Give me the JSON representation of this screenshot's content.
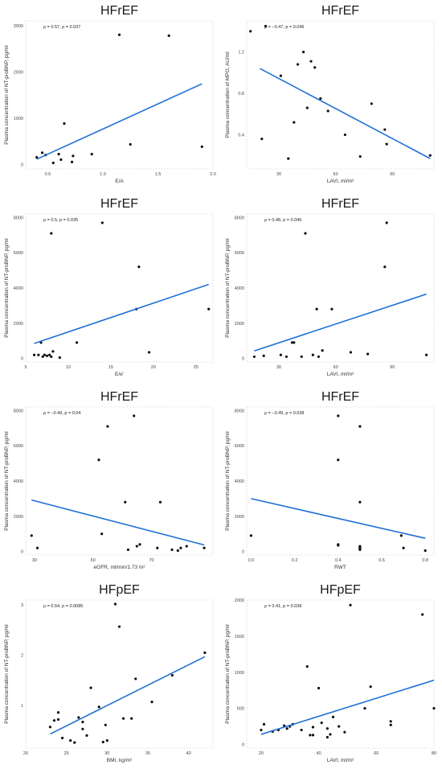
{
  "chart_data": [
    {
      "type": "scatter",
      "title": "HFrEF",
      "annotation": "ρ = 0.57, p = 0.037",
      "xlabel": "E/A",
      "ylabel": "Plasma concentration of NT-proBNP, pg/ml",
      "xlim": [
        0.3,
        2.0
      ],
      "ylim": [
        -100,
        3100
      ],
      "xticks": [
        "0.5",
        "1.0",
        "1.5",
        "2.0"
      ],
      "yticks": [
        "0",
        "1000",
        "2000",
        "3000"
      ],
      "x": [
        0.4,
        0.45,
        0.48,
        0.55,
        0.6,
        0.62,
        0.65,
        0.72,
        0.73,
        0.9,
        1.15,
        1.25,
        1.6,
        1.9
      ],
      "y": [
        150,
        250,
        200,
        30,
        220,
        100,
        880,
        50,
        180,
        220,
        2800,
        430,
        2780,
        380
      ],
      "fit": {
        "x": [
          0.4,
          1.9
        ],
        "y": [
          110,
          1740
        ]
      }
    },
    {
      "type": "scatter",
      "title": "HFrEF",
      "annotation": "ρ = −0.47, p = 0.046",
      "xlabel": "LAVI, ml/m²",
      "ylabel": "Plasma concentration of MPO, AU/ml",
      "xlim": [
        13,
        112
      ],
      "ylim": [
        0.07,
        1.5
      ],
      "xticks": [
        "30",
        "60",
        "90"
      ],
      "yticks": [
        "0.4",
        "0.8",
        "1.2"
      ],
      "x": [
        15,
        21,
        23,
        31,
        35,
        38,
        40,
        43,
        45,
        47,
        49,
        52,
        56,
        65,
        73,
        79,
        86,
        87,
        110
      ],
      "y": [
        1.4,
        0.36,
        1.45,
        0.97,
        0.17,
        0.52,
        1.08,
        1.2,
        0.66,
        1.11,
        1.05,
        0.75,
        0.63,
        0.4,
        0.19,
        0.7,
        0.45,
        0.31,
        0.2
      ],
      "fit": {
        "x": [
          20,
          110
        ],
        "y": [
          1.04,
          0.17
        ]
      }
    },
    {
      "type": "scatter",
      "title": "HFrEF",
      "annotation": "ρ = 0.5, p = 0.035",
      "xlabel": "E/e'",
      "ylabel": "Plasma concentration of NT-proBNP, pg/ml",
      "xlim": [
        5,
        27
      ],
      "ylim": [
        -200,
        8200
      ],
      "xticks": [
        "5",
        "10",
        "15",
        "20",
        "25"
      ],
      "yticks": [
        "0",
        "2000",
        "4000",
        "6000",
        "8000"
      ],
      "x": [
        6,
        6.5,
        6.8,
        7,
        7.2,
        7.5,
        7.8,
        8,
        8,
        8.2,
        9,
        11,
        14,
        18,
        18.3,
        19.5,
        26.5
      ],
      "y": [
        200,
        200,
        900,
        100,
        200,
        150,
        200,
        7100,
        100,
        400,
        50,
        900,
        7700,
        2800,
        5200,
        350,
        2800
      ],
      "fit": {
        "x": [
          6,
          26.5
        ],
        "y": [
          850,
          4200
        ]
      }
    },
    {
      "type": "scatter",
      "title": "HFrEF",
      "annotation": "ρ = 0.48, p = 0.046",
      "xlabel": "LAVI, ml/m²",
      "ylabel": "Plasma concentration of NT-proBNP, pg/ml",
      "xlim": [
        13,
        112
      ],
      "ylim": [
        -200,
        8200
      ],
      "xticks": [
        "30",
        "60",
        "90"
      ],
      "yticks": [
        "0",
        "2000",
        "4000",
        "6000",
        "8000"
      ],
      "x": [
        17,
        22,
        31,
        34,
        37,
        38,
        42,
        44,
        48,
        50,
        51,
        53,
        58,
        68,
        77,
        86,
        87,
        108
      ],
      "y": [
        100,
        150,
        200,
        100,
        900,
        900,
        100,
        7100,
        200,
        2800,
        100,
        450,
        2800,
        350,
        250,
        5200,
        7700,
        200
      ],
      "fit": {
        "x": [
          17,
          108
        ],
        "y": [
          430,
          3650
        ]
      }
    },
    {
      "type": "scatter",
      "title": "HFrEF",
      "annotation": "ρ = −0.49, p = 0.04",
      "xlabel": "eGFR, ml/min/1.73 m²",
      "ylabel": "Plasma concentration of NT-proBNP, pg/ml",
      "xlim": [
        27,
        91
      ],
      "ylim": [
        -200,
        8200
      ],
      "xticks": [
        "30",
        "50",
        "70"
      ],
      "yticks": [
        "0",
        "2000",
        "4000",
        "6000",
        "8000"
      ],
      "x": [
        29,
        31,
        52,
        53,
        55,
        61,
        62,
        64,
        65,
        66,
        72,
        73,
        77,
        79,
        80,
        82,
        88
      ],
      "y": [
        900,
        200,
        5200,
        1000,
        7100,
        2800,
        100,
        7700,
        300,
        400,
        200,
        2800,
        100,
        50,
        200,
        300,
        200
      ],
      "fit": {
        "x": [
          29,
          88
        ],
        "y": [
          2920,
          370
        ]
      }
    },
    {
      "type": "scatter",
      "title": "HFrEF",
      "annotation": "ρ = −0.49, p = 0.038",
      "xlabel": "RWT",
      "ylabel": "Plasma concentration of NT-proBNP, pg/ml",
      "xlim": [
        -0.02,
        0.84
      ],
      "ylim": [
        -200,
        8200
      ],
      "xticks": [
        "0.0",
        "0.2",
        "0.4",
        "0.6",
        "0.8"
      ],
      "yticks": [
        "0",
        "2000",
        "4000",
        "6000",
        "8000"
      ],
      "x": [
        0,
        0.4,
        0.4,
        0.4,
        0.4,
        0.5,
        0.5,
        0.5,
        0.5,
        0.5,
        0.5,
        0.5,
        0.69,
        0.7,
        0.8
      ],
      "y": [
        900,
        7700,
        5200,
        400,
        350,
        7100,
        2800,
        300,
        250,
        200,
        150,
        100,
        900,
        200,
        50
      ],
      "fit": {
        "x": [
          0,
          0.8
        ],
        "y": [
          3000,
          750
        ]
      }
    },
    {
      "type": "scatter",
      "title": "HFpEF",
      "annotation": "ρ = 0.54, p = 0.0085",
      "xlabel": "BMI, kg/m²",
      "ylabel": "Plasma concentration of NT-proBNP, pg/ml",
      "xlim": [
        20,
        43
      ],
      "ylim": [
        0.15,
        3.1
      ],
      "xticks": [
        "20",
        "25",
        "30",
        "35",
        "40"
      ],
      "yticks": [
        "1",
        "2",
        "3"
      ],
      "x": [
        23,
        23.5,
        24,
        24,
        24.5,
        25.5,
        26,
        26.5,
        27,
        27,
        27.5,
        28,
        29,
        29.5,
        29.8,
        30,
        31,
        31.5,
        32,
        33,
        33.5,
        35.5,
        38,
        42
      ],
      "y": [
        0.57,
        0.7,
        0.72,
        0.86,
        0.35,
        0.3,
        0.26,
        0.76,
        0.67,
        0.53,
        0.4,
        1.35,
        0.97,
        0.27,
        0.61,
        0.3,
        3.02,
        2.57,
        0.74,
        0.74,
        1.53,
        1.07,
        1.6,
        2.05
      ],
      "fit": {
        "x": [
          23,
          42
        ],
        "y": [
          0.43,
          1.97
        ]
      }
    },
    {
      "type": "scatter",
      "title": "HFpEF",
      "annotation": "ρ = 0.41, p = 0.038",
      "xlabel": "LAVI, ml/m²",
      "ylabel": "Plasma concentration of NT-proBNP, pg/ml",
      "xlim": [
        15,
        80
      ],
      "ylim": [
        -50,
        2000
      ],
      "xticks": [
        "20",
        "40",
        "60",
        "80"
      ],
      "yticks": [
        "0",
        "500",
        "1000",
        "1500",
        "2000"
      ],
      "x": [
        20,
        21,
        24,
        26,
        28,
        29,
        30,
        31,
        34,
        36,
        37,
        38,
        38,
        40,
        41,
        43,
        43,
        44,
        45,
        47,
        49,
        51,
        56,
        58,
        65,
        65,
        76,
        80
      ],
      "y": [
        200,
        280,
        180,
        200,
        260,
        220,
        250,
        280,
        200,
        1080,
        130,
        240,
        130,
        780,
        300,
        220,
        100,
        140,
        380,
        250,
        170,
        1930,
        500,
        800,
        320,
        270,
        1800,
        500
      ],
      "fit": {
        "x": [
          20,
          80
        ],
        "y": [
          140,
          890
        ]
      }
    }
  ]
}
